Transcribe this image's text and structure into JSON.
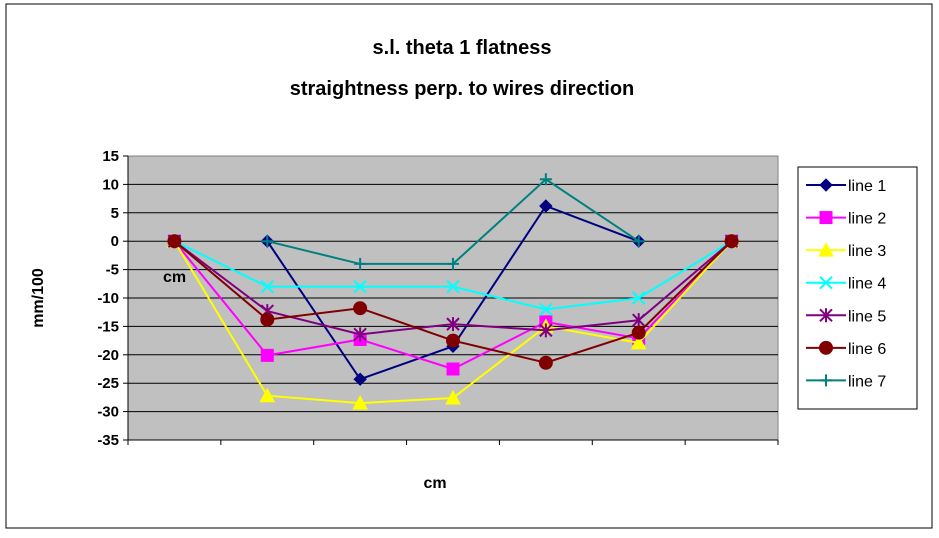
{
  "chart_data": {
    "type": "line",
    "title_lines": [
      "s.l. theta 1 flatness",
      "straightness perp. to wires direction"
    ],
    "xlabel": "cm",
    "ylabel": "mm/100",
    "stray_label": "cm",
    "ylim": [
      -35,
      15
    ],
    "ystep": 5,
    "x": [
      1,
      2,
      3,
      4,
      5,
      6,
      7
    ],
    "grid": true,
    "plot_background": "#c0c0c0",
    "legend_position": "right",
    "series": [
      {
        "name": "line 1",
        "color": "#000080",
        "marker": "diamond",
        "values": [
          null,
          0,
          -24.3,
          -18.5,
          6.2,
          0,
          null
        ]
      },
      {
        "name": "line 2",
        "color": "#ff00ff",
        "marker": "square",
        "values": [
          0,
          -20.1,
          -17.3,
          -22.5,
          -14.2,
          -17.1,
          0
        ]
      },
      {
        "name": "line 3",
        "color": "#ffff00",
        "marker": "triangle",
        "values": [
          0,
          -27.2,
          -28.5,
          -27.6,
          -15.0,
          -17.9,
          0
        ]
      },
      {
        "name": "line 4",
        "color": "#00ffff",
        "marker": "x",
        "values": [
          0,
          -8.0,
          -8.0,
          -8.0,
          -12.0,
          -10.0,
          0
        ]
      },
      {
        "name": "line 5",
        "color": "#800080",
        "marker": "star",
        "values": [
          0,
          -12.3,
          -16.4,
          -14.6,
          -15.7,
          -13.9,
          0
        ]
      },
      {
        "name": "line 6",
        "color": "#800000",
        "marker": "circle",
        "values": [
          0,
          -13.8,
          -11.8,
          -17.5,
          -21.4,
          -16.1,
          0
        ]
      },
      {
        "name": "line 7",
        "color": "#008080",
        "marker": "plus",
        "values": [
          null,
          0,
          -4.0,
          -4.0,
          10.9,
          0,
          null
        ]
      }
    ]
  }
}
